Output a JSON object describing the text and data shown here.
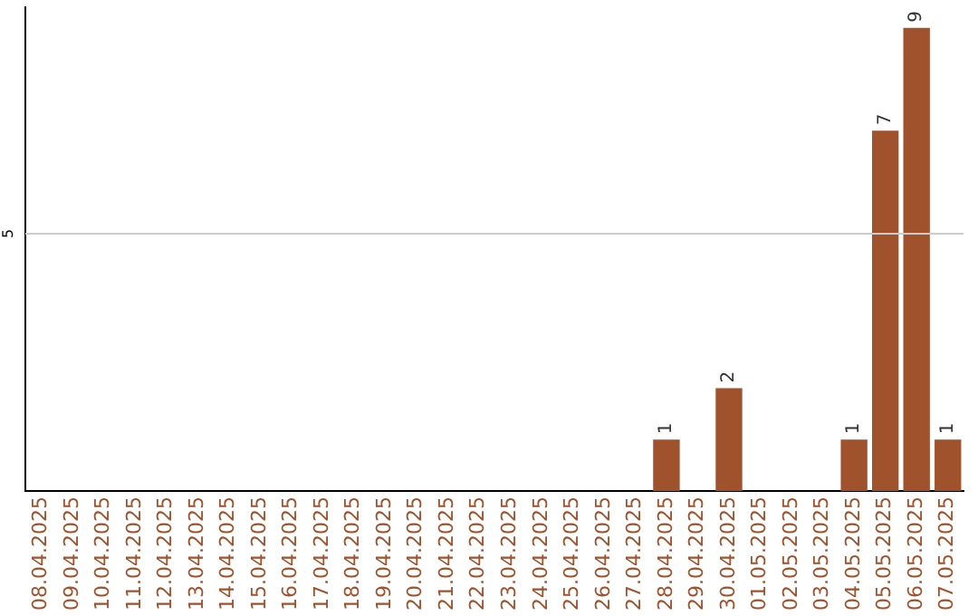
{
  "chart_data": {
    "type": "bar",
    "categories": [
      "08.04.2025",
      "09.04.2025",
      "10.04.2025",
      "11.04.2025",
      "12.04.2025",
      "13.04.2025",
      "14.04.2025",
      "15.04.2025",
      "16.04.2025",
      "17.04.2025",
      "18.04.2025",
      "19.04.2025",
      "20.04.2025",
      "21.04.2025",
      "22.04.2025",
      "23.04.2025",
      "24.04.2025",
      "25.04.2025",
      "26.04.2025",
      "27.04.2025",
      "28.04.2025",
      "29.04.2025",
      "30.04.2025",
      "01.05.2025",
      "02.05.2025",
      "03.05.2025",
      "04.05.2025",
      "05.05.2025",
      "06.05.2025",
      "07.05.2025"
    ],
    "values": [
      null,
      null,
      null,
      null,
      null,
      null,
      null,
      null,
      null,
      null,
      null,
      null,
      null,
      null,
      null,
      null,
      null,
      null,
      null,
      null,
      1,
      null,
      2,
      null,
      null,
      null,
      1,
      7,
      9,
      1
    ],
    "data_labels": true,
    "color": "#a0522d",
    "ylim": [
      0,
      9.4
    ],
    "ref_lines": [
      {
        "axis": "y",
        "value": 5,
        "label": "5",
        "color": "#cccccc"
      }
    ],
    "legend": false
  }
}
